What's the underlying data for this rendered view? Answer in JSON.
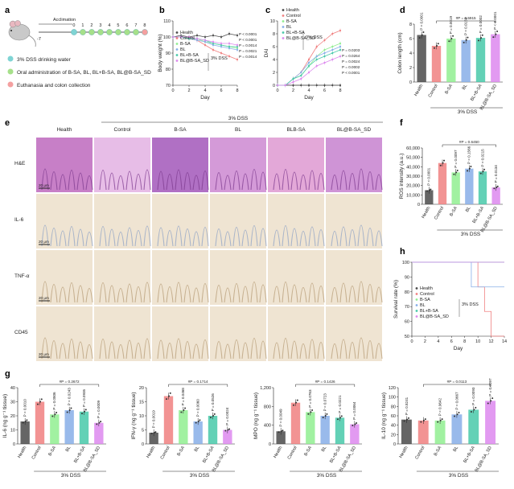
{
  "colors": {
    "Health": "#4a4a4a",
    "Control": "#f08080",
    "B-SA": "#90ee90",
    "BL": "#87aee8",
    "BL+B-SA": "#48c9a9",
    "BL@B-SA_SD": "#dd88ee",
    "water": "#7fd4d4",
    "oral": "#a6e08a",
    "euth": "#f4a0a0"
  },
  "panels": {
    "a": "a",
    "b": "b",
    "c": "c",
    "d": "d",
    "e": "e",
    "f": "f",
    "g": "g",
    "h": "h"
  },
  "timeline": {
    "acclimation": "Acclimation",
    "start": "-7",
    "days": [
      "0",
      "1",
      "2",
      "3",
      "4",
      "5",
      "6",
      "7",
      "8"
    ],
    "legend": [
      "3% DSS drinking water",
      "Oral administration of B-SA, BL, BL+B-SA, BL@B-SA_SD",
      "Euthanasia and colon collection"
    ]
  },
  "groups": [
    "Health",
    "Control",
    "B-SA",
    "BL",
    "BL+B-SA",
    "BL@B-SA_SD"
  ],
  "dss_label": "3% DSS",
  "micro": {
    "columns": [
      "Health",
      "Control",
      "B-SA",
      "BL",
      "BLB-SA",
      "BL@B-SA_SD"
    ],
    "rows": [
      "H&E",
      "IL-6",
      "TNF-α",
      "CD45"
    ],
    "scale_labels": [
      "20 μm",
      "20 μm",
      "20 μm",
      "20 μm"
    ]
  },
  "chart_data": [
    {
      "id": "b",
      "type": "line",
      "xlabel": "Day",
      "ylabel": "Body weight (%)",
      "x": [
        0,
        1,
        2,
        3,
        4,
        5,
        6,
        7,
        8
      ],
      "xticks": [
        "0",
        "2",
        "4",
        "6",
        "8"
      ],
      "yticks": [
        "70",
        "80",
        "90",
        "100",
        "110"
      ],
      "ylim": [
        70,
        110
      ],
      "series": [
        {
          "name": "Health",
          "values": [
            100,
            101,
            100,
            101,
            100,
            101,
            100,
            102,
            101
          ]
        },
        {
          "name": "Control",
          "values": [
            100,
            100,
            99,
            98,
            95,
            92,
            90,
            88,
            86
          ]
        },
        {
          "name": "B-SA",
          "values": [
            100,
            100,
            99,
            99,
            97,
            96,
            95,
            94,
            93
          ]
        },
        {
          "name": "BL",
          "values": [
            100,
            100,
            99,
            98,
            97,
            95,
            94,
            93,
            92
          ]
        },
        {
          "name": "BL+B-SA",
          "values": [
            100,
            100,
            99,
            99,
            98,
            96,
            95,
            94,
            94
          ]
        },
        {
          "name": "BL@B-SA_SD",
          "values": [
            100,
            100,
            100,
            99,
            98,
            97,
            96,
            96,
            95
          ]
        }
      ],
      "annotation": "3% DSS",
      "pvalues": [
        "P < 0.0001",
        "P < 0.0001",
        "P = 0.0014",
        "P = 0.0021",
        "P = 0.0014"
      ]
    },
    {
      "id": "c",
      "type": "line",
      "xlabel": "Day",
      "ylabel": "DAI",
      "x": [
        0,
        1,
        2,
        3,
        4,
        5,
        6,
        7,
        8
      ],
      "xticks": [
        "0",
        "2",
        "4",
        "6",
        "8"
      ],
      "yticks": [
        "0",
        "2",
        "4",
        "6",
        "8",
        "10"
      ],
      "ylim": [
        0,
        10
      ],
      "series": [
        {
          "name": "Health",
          "values": [
            0,
            0,
            0,
            0,
            0,
            0,
            0,
            0,
            0
          ]
        },
        {
          "name": "Control",
          "values": [
            0,
            0,
            1,
            2,
            4,
            6,
            7,
            8,
            8.5
          ]
        },
        {
          "name": "B-SA",
          "values": [
            0,
            0,
            1,
            1.5,
            3,
            4.5,
            5.5,
            6,
            6.5
          ]
        },
        {
          "name": "BL",
          "values": [
            0,
            0,
            1,
            2,
            3.5,
            4.5,
            5,
            5.5,
            6
          ]
        },
        {
          "name": "BL+B-SA",
          "values": [
            0,
            0,
            1,
            1.5,
            3,
            4,
            4.5,
            5,
            5.5
          ]
        },
        {
          "name": "BL@B-SA_SD",
          "values": [
            0,
            0,
            0.5,
            1,
            2,
            3,
            3.5,
            4,
            4.5
          ]
        }
      ],
      "annotation": "3% DSS",
      "pvalues": [
        "P = 0.0203",
        "P = 0.0264",
        "P = 0.0024",
        "P = 0.0002",
        "P < 0.0001"
      ]
    },
    {
      "id": "d",
      "type": "bar",
      "ylabel": "Colon length (cm)",
      "categories": [
        "Health",
        "Control",
        "B-SA",
        "BL",
        "BL+B-SA",
        "BL@B-SA_SD"
      ],
      "values": [
        6.5,
        5.0,
        6.0,
        5.8,
        6.1,
        6.6
      ],
      "yticks": [
        "0",
        "2",
        "4",
        "6",
        "8"
      ],
      "ylim": [
        0,
        8
      ],
      "pvalues": [
        "P = 0.0001",
        "",
        "P = 0.0019",
        "P = 0.0159",
        "P = 0.0002",
        "P < 0.0001"
      ],
      "bracket": "#P = 0.5915"
    },
    {
      "id": "f",
      "type": "bar",
      "ylabel": "ROS intensity (a.u.)",
      "categories": [
        "Health",
        "Control",
        "B-SA",
        "BL",
        "BL+B-SA",
        "BL@B-SA_SD"
      ],
      "values": [
        15000,
        44000,
        34000,
        38000,
        35000,
        18000
      ],
      "yticks": [
        "0",
        "10,000",
        "20,000",
        "30,000",
        "40,000",
        "50,000",
        "60,000"
      ],
      "ylim": [
        0,
        60000
      ],
      "pvalues": [
        "P < 0.0001",
        "",
        "P = 0.0097",
        "P = 0.1566",
        "P = 0.0215",
        "P = 0.0134"
      ],
      "bracket": "#P = 0.6450"
    },
    {
      "id": "h",
      "type": "line",
      "xlabel": "Day",
      "ylabel": "Survival rate (%)",
      "xticks": [
        "0",
        "2",
        "4",
        "6",
        "8",
        "10",
        "12",
        "14"
      ],
      "yticks": [
        "50",
        "60",
        "70",
        "80",
        "90",
        "100"
      ],
      "ylim": [
        50,
        100
      ],
      "series": [
        {
          "name": "Health",
          "x": [
            0,
            14
          ],
          "values": [
            100,
            100
          ]
        },
        {
          "name": "Control",
          "x": [
            0,
            10,
            10,
            11,
            11,
            12,
            12,
            14
          ],
          "values": [
            100,
            100,
            83.3,
            83.3,
            66.7,
            66.7,
            50,
            50
          ]
        },
        {
          "name": "B-SA",
          "x": [
            0,
            14
          ],
          "values": [
            100,
            100
          ]
        },
        {
          "name": "BL",
          "x": [
            0,
            9,
            9,
            14
          ],
          "values": [
            100,
            100,
            83.3,
            83.3
          ]
        },
        {
          "name": "BL+B-SA",
          "x": [
            0,
            14
          ],
          "values": [
            100,
            100
          ]
        },
        {
          "name": "BL@B-SA_SD",
          "x": [
            0,
            14
          ],
          "values": [
            100,
            100
          ]
        }
      ],
      "annotation": "3% DSS"
    },
    {
      "id": "g1",
      "type": "bar",
      "ylabel": "IL-6 (ng g⁻¹ tissue)",
      "categories": [
        "Health",
        "Control",
        "B-SA",
        "BL",
        "BL+B-SA",
        "BL@B-SA_SD"
      ],
      "values": [
        16,
        30,
        21,
        24,
        23,
        15
      ],
      "yticks": [
        "0",
        "10",
        "20",
        "30",
        "40"
      ],
      "ylim": [
        0,
        40
      ],
      "pvalues": [
        "P = 0.0010",
        "",
        "P = 0.0806",
        "P = 0.0243",
        "P = 0.0935",
        "P = 0.0009"
      ],
      "bracket": "#P = 0.2672"
    },
    {
      "id": "g2",
      "type": "bar",
      "ylabel": "IFN-γ (ng g⁻¹ tissue)",
      "categories": [
        "Health",
        "Control",
        "B-SA",
        "BL",
        "BL+B-SA",
        "BL@B-SA_SD"
      ],
      "values": [
        4,
        17,
        12,
        8,
        10,
        5
      ],
      "yticks": [
        "0",
        "5",
        "10",
        "15",
        "20"
      ],
      "ylim": [
        0,
        20
      ],
      "pvalues": [
        "P = 0.0019",
        "",
        "P = 0.0468",
        "P = 0.0060",
        "P = 0.0526",
        "P = 0.0024"
      ],
      "bracket": "#P = 0.1714"
    },
    {
      "id": "g3",
      "type": "bar",
      "ylabel": "MPO (ng g⁻¹ tissue)",
      "categories": [
        "Health",
        "Control",
        "B-SA",
        "BL",
        "BL+B-SA",
        "BL@B-SA_SD"
      ],
      "values": [
        270,
        880,
        680,
        600,
        560,
        420
      ],
      "yticks": [
        "0",
        "400",
        "800",
        "1,200"
      ],
      "ylim": [
        0,
        1200
      ],
      "pvalues": [
        "P = 0.0049",
        "",
        "P = 0.0763",
        "P = 0.0723",
        "P = 0.0221",
        "P = 0.0064"
      ],
      "bracket": "#P = 0.1426"
    },
    {
      "id": "g4",
      "type": "bar",
      "ylabel": "IL-10 (ng g⁻¹ tissue)",
      "categories": [
        "Health",
        "Control",
        "B-SA",
        "BL",
        "BL+B-SA",
        "BL@B-SA_SD"
      ],
      "values": [
        52,
        50,
        50,
        63,
        73,
        92
      ],
      "yticks": [
        "0",
        "20",
        "40",
        "60",
        "80",
        "100",
        "120"
      ],
      "ylim": [
        0,
        120
      ],
      "pvalues": [
        "P = 0.8241",
        "",
        "P = 0.9642",
        "P = 0.0667",
        "P = 0.0093",
        "P = 0.0097"
      ],
      "bracket": "#P = 0.0113"
    }
  ]
}
